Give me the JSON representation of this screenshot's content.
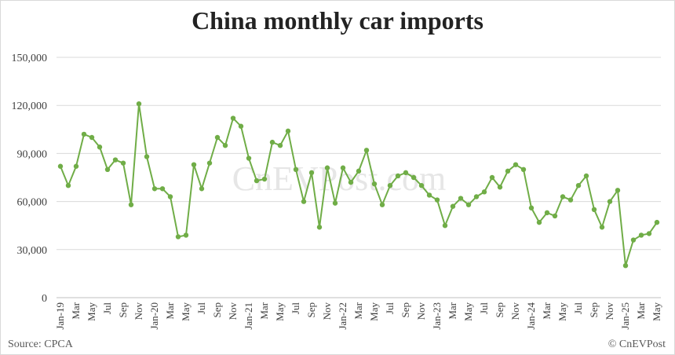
{
  "title": "China monthly car imports",
  "source": "Source: CPCA",
  "credit": "© CnEVPost",
  "watermark": "CnEVPost.com",
  "colors": {
    "line": "#70ad47",
    "grid": "#d9d9d9",
    "axis": "#bfbfbf"
  },
  "chart_data": {
    "type": "line",
    "title": "China monthly car imports",
    "ylim": [
      0,
      150000
    ],
    "yticks": [
      0,
      30000,
      60000,
      90000,
      120000,
      150000
    ],
    "ytick_labels": [
      "0",
      "30,000",
      "60,000",
      "90,000",
      "120,000",
      "150,000"
    ],
    "grid": true,
    "x": [
      "Jan-19",
      "Feb-19",
      "Mar-19",
      "Apr-19",
      "May-19",
      "Jun-19",
      "Jul-19",
      "Aug-19",
      "Sep-19",
      "Oct-19",
      "Nov-19",
      "Dec-19",
      "Jan-20",
      "Feb-20",
      "Mar-20",
      "Apr-20",
      "May-20",
      "Jun-20",
      "Jul-20",
      "Aug-20",
      "Sep-20",
      "Oct-20",
      "Nov-20",
      "Dec-20",
      "Jan-21",
      "Feb-21",
      "Mar-21",
      "Apr-21",
      "May-21",
      "Jun-21",
      "Jul-21",
      "Aug-21",
      "Sep-21",
      "Oct-21",
      "Nov-21",
      "Dec-21",
      "Jan-22",
      "Feb-22",
      "Mar-22",
      "Apr-22",
      "May-22",
      "Jun-22",
      "Jul-22",
      "Aug-22",
      "Sep-22",
      "Oct-22",
      "Nov-22",
      "Dec-22",
      "Jan-23",
      "Feb-23",
      "Mar-23",
      "Apr-23",
      "May-23",
      "Jun-23",
      "Jul-23",
      "Aug-23",
      "Sep-23",
      "Oct-23",
      "Nov-23",
      "Dec-23",
      "Jan-24",
      "Feb-24",
      "Mar-24",
      "Apr-24",
      "May-24",
      "Jun-24",
      "Jul-24",
      "Aug-24",
      "Sep-24",
      "Oct-24",
      "Nov-24",
      "Dec-24",
      "Jan-25",
      "Feb-25",
      "Mar-25",
      "Apr-25",
      "May-25"
    ],
    "tick_labels": [
      "Jan-19",
      "",
      "Mar",
      "",
      "May",
      "",
      "Jul",
      "",
      "Sep",
      "",
      "Nov",
      "",
      "Jan-20",
      "",
      "Mar",
      "",
      "May",
      "",
      "Jul",
      "",
      "Sep",
      "",
      "Nov",
      "",
      "Jan-21",
      "",
      "Mar",
      "",
      "May",
      "",
      "Jul",
      "",
      "Sep",
      "",
      "Nov",
      "",
      "Jan-22",
      "",
      "Mar",
      "",
      "May",
      "",
      "Jul",
      "",
      "Sep",
      "",
      "Nov",
      "",
      "Jan-23",
      "",
      "Mar",
      "",
      "May",
      "",
      "Jul",
      "",
      "Sep",
      "",
      "Nov",
      "",
      "Jan-24",
      "",
      "Mar",
      "",
      "May",
      "",
      "Jul",
      "",
      "Sep",
      "",
      "Nov",
      "",
      "Jan-25",
      "",
      "Mar",
      "",
      "May"
    ],
    "series": [
      {
        "values": [
          82000,
          70000,
          82000,
          102000,
          100000,
          94000,
          80000,
          86000,
          84000,
          58000,
          121000,
          88000,
          68000,
          68000,
          63000,
          38000,
          39000,
          83000,
          68000,
          84000,
          100000,
          95000,
          112000,
          107000,
          87000,
          73000,
          74000,
          97000,
          95000,
          104000,
          80000,
          60000,
          78000,
          44000,
          81000,
          59000,
          81000,
          72000,
          79000,
          92000,
          71000,
          58000,
          70000,
          76000,
          78000,
          75000,
          70000,
          64000,
          61000,
          45000,
          57000,
          62000,
          58000,
          63000,
          66000,
          75000,
          69000,
          79000,
          83000,
          80000,
          56000,
          47000,
          53000,
          51000,
          63000,
          61000,
          70000,
          76000,
          55000,
          44000,
          60000,
          67000,
          20000,
          36000,
          39000,
          40000,
          47000
        ]
      }
    ]
  }
}
